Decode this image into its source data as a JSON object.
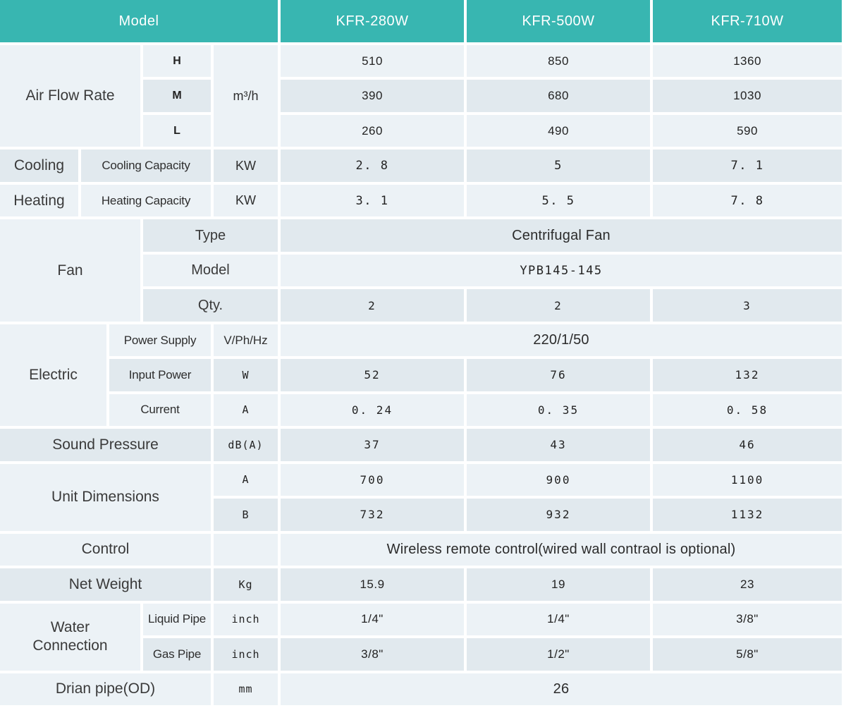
{
  "colors": {
    "accent_teal": "#38b6b1",
    "row_light": "#ecf2f6",
    "row_dark": "#e1e9ee",
    "grid_lines": "#ffffff",
    "header_text": "#ffffff",
    "body_text": "#3a3a3a"
  },
  "header": {
    "model_label": "Model",
    "columns": [
      "KFR-280W",
      "KFR-500W",
      "KFR-710W"
    ]
  },
  "air_flow": {
    "label": "Air Flow Rate",
    "unit": "m³/h",
    "levels": [
      {
        "name": "H",
        "values": [
          "510",
          "850",
          "1360"
        ]
      },
      {
        "name": "M",
        "values": [
          "390",
          "680",
          "1030"
        ]
      },
      {
        "name": "L",
        "values": [
          "260",
          "490",
          "590"
        ]
      }
    ]
  },
  "cooling": {
    "label": "Cooling",
    "sub_label": "Cooling Capacity",
    "unit": "KW",
    "values": [
      "2. 8",
      "5",
      "7. 1"
    ]
  },
  "heating": {
    "label": "Heating",
    "sub_label": "Heating Capacity",
    "unit": "KW",
    "values": [
      "3. 1",
      "5. 5",
      "7. 8"
    ]
  },
  "fan": {
    "label": "Fan",
    "type_label": "Type",
    "type_value": "Centrifugal Fan",
    "model_label": "Model",
    "model_value": "YPB145-145",
    "qty_label": "Qty.",
    "qty_values": [
      "2",
      "2",
      "3"
    ]
  },
  "electric": {
    "label": "Electric",
    "power_supply": {
      "sub_label": "Power Supply",
      "unit": "V/Ph/Hz",
      "value": "220/1/50"
    },
    "input_power": {
      "sub_label": "Input Power",
      "unit": "W",
      "values": [
        "52",
        "76",
        "132"
      ]
    },
    "current": {
      "sub_label": "Current",
      "unit": "A",
      "values": [
        "0. 24",
        "0. 35",
        "0. 58"
      ]
    }
  },
  "sound_pressure": {
    "label": "Sound Pressure",
    "unit": "dB(A)",
    "values": [
      "37",
      "43",
      "46"
    ]
  },
  "unit_dimensions": {
    "label": "Unit Dimensions",
    "rows": [
      {
        "name": "A",
        "values": [
          "700",
          "900",
          "1100"
        ]
      },
      {
        "name": "B",
        "values": [
          "732",
          "932",
          "1132"
        ]
      }
    ]
  },
  "control": {
    "label": "Control",
    "value": "Wireless remote control(wired wall contraol is optional)"
  },
  "net_weight": {
    "label": "Net Weight",
    "unit": "Kg",
    "values": [
      "15.9",
      "19",
      "23"
    ]
  },
  "water_connection": {
    "label": "Water Connection",
    "liquid": {
      "sub_label": "Liquid Pipe",
      "unit": "inch",
      "values": [
        "1/4\"",
        "1/4\"",
        "3/8\""
      ]
    },
    "gas": {
      "sub_label": "Gas Pipe",
      "unit": "inch",
      "values": [
        "3/8\"",
        "1/2\"",
        "5/8\""
      ]
    }
  },
  "drain": {
    "label": "Drian pipe(OD)",
    "unit": "mm",
    "value": "26"
  }
}
